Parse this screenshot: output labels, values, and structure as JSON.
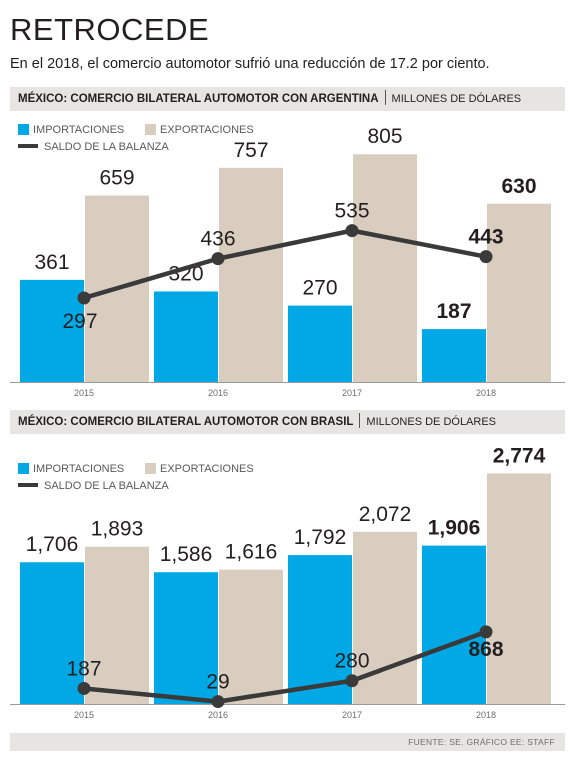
{
  "header": {
    "title": "RETROCEDE",
    "subtitle": "En el 2018, el comercio automotor sufrió una reducción de 17.2 por ciento."
  },
  "legend": {
    "imports": "IMPORTACIONES",
    "exports": "EXPORTACIONES",
    "balance": "SALDO DE LA BALANZA"
  },
  "colors": {
    "imports": "#00a8e6",
    "exports": "#d9cdbf",
    "balance": "#3a3a3a",
    "header_bg": "#e7e5e4"
  },
  "footer": {
    "source": "FUENTE: SE. GRÁFICO EE: STAFF"
  },
  "chart_data": [
    {
      "type": "bar",
      "title": "MÉXICO: COMERCIO BILATERAL AUTOMOTOR CON ARGENTINA",
      "unit": "MILLONES DE DÓLARES",
      "categories": [
        "2015",
        "2016",
        "2017",
        "2018"
      ],
      "series": [
        {
          "name": "IMPORTACIONES",
          "values": [
            361,
            320,
            270,
            187
          ],
          "labels": [
            "361",
            "320",
            "270",
            "187"
          ]
        },
        {
          "name": "EXPORTACIONES",
          "values": [
            659,
            757,
            805,
            630
          ],
          "labels": [
            "659",
            "757",
            "805",
            "630"
          ]
        },
        {
          "name": "SALDO DE LA BALANZA",
          "type": "line",
          "values": [
            297,
            436,
            535,
            443
          ],
          "labels": [
            "297",
            "436",
            "535",
            "443"
          ]
        }
      ],
      "ylim": [
        0,
        820
      ],
      "legend_position": "top-left",
      "grid": false
    },
    {
      "type": "bar",
      "title": "MÉXICO: COMERCIO BILATERAL AUTOMOTOR CON BRASIL",
      "unit": "MILLONES DE DÓLARES",
      "categories": [
        "2015",
        "2016",
        "2017",
        "2018"
      ],
      "series": [
        {
          "name": "IMPORTACIONES",
          "values": [
            1706,
            1586,
            1792,
            1906
          ],
          "labels": [
            "1,706",
            "1,586",
            "1,792",
            "1,906"
          ]
        },
        {
          "name": "EXPORTACIONES",
          "values": [
            1893,
            1616,
            2072,
            2774
          ],
          "labels": [
            "1,893",
            "1,616",
            "2,072",
            "2,774"
          ]
        },
        {
          "name": "SALDO DE LA BALANZA",
          "type": "line",
          "values": [
            187,
            29,
            280,
            868
          ],
          "labels": [
            "187",
            "29",
            "280",
            "868"
          ]
        }
      ],
      "ylim": [
        0,
        2780
      ],
      "legend_position": "top-left",
      "grid": false
    }
  ]
}
